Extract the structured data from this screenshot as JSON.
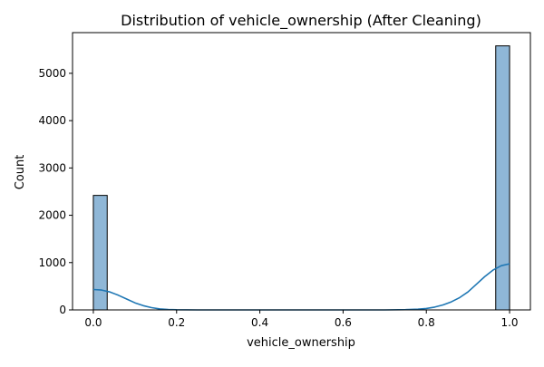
{
  "chart_data": {
    "type": "histogram",
    "title": "Distribution of vehicle_ownership (After Cleaning)",
    "xlabel": "vehicle_ownership",
    "ylabel": "Count",
    "xlim": [
      -0.05,
      1.05
    ],
    "ylim": [
      0,
      5860
    ],
    "xticks": [
      0.0,
      0.2,
      0.4,
      0.6,
      0.8,
      1.0
    ],
    "xtick_labels": [
      "0.0",
      "0.2",
      "0.4",
      "0.6",
      "0.8",
      "1.0"
    ],
    "yticks": [
      0,
      1000,
      2000,
      3000,
      4000,
      5000
    ],
    "ytick_labels": [
      "0",
      "1000",
      "2000",
      "3000",
      "4000",
      "5000"
    ],
    "bins": [
      {
        "x0": 0.0,
        "x1": 0.0333,
        "count": 2420
      },
      {
        "x0": 0.9667,
        "x1": 1.0,
        "count": 5580
      }
    ],
    "kde": {
      "x": [
        0.0,
        0.02,
        0.04,
        0.06,
        0.08,
        0.1,
        0.12,
        0.14,
        0.16,
        0.18,
        0.2,
        0.25,
        0.3,
        0.4,
        0.5,
        0.6,
        0.7,
        0.75,
        0.78,
        0.8,
        0.82,
        0.84,
        0.86,
        0.88,
        0.9,
        0.92,
        0.94,
        0.96,
        0.98,
        1.0
      ],
      "y": [
        430,
        420,
        380,
        310,
        230,
        150,
        90,
        48,
        22,
        10,
        4,
        0,
        0,
        0,
        0,
        0,
        0,
        5,
        15,
        30,
        60,
        105,
        170,
        260,
        380,
        540,
        700,
        840,
        935,
        975
      ]
    },
    "colors": {
      "bar_fill": "#8fb7d7",
      "bar_edge": "#000000",
      "kde_line": "#1f77b4"
    },
    "grid": false
  }
}
